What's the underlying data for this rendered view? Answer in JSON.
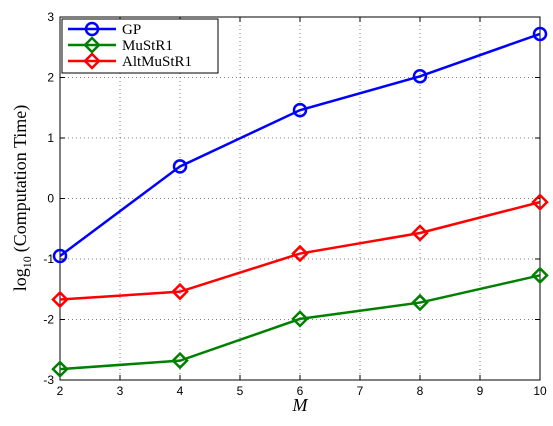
{
  "chart_data": {
    "type": "line",
    "xlabel": "M",
    "ylabel": {
      "base": "log",
      "sub": "10",
      "text": "(Computation Time)"
    },
    "x": [
      2,
      4,
      6,
      8,
      10
    ],
    "series": [
      {
        "name": "GP",
        "color": "#0000ff",
        "marker": "circle",
        "values": [
          -0.95,
          0.53,
          1.46,
          2.02,
          2.72
        ]
      },
      {
        "name": "MuStR1",
        "color": "#008000",
        "marker": "diamond",
        "values": [
          -2.82,
          -2.68,
          -1.99,
          -1.72,
          -1.27
        ]
      },
      {
        "name": "AltMuStR1",
        "color": "#ff0000",
        "marker": "diamond",
        "values": [
          -1.67,
          -1.54,
          -0.91,
          -0.57,
          -0.06
        ]
      }
    ],
    "xlim": [
      2,
      10
    ],
    "xticks": [
      2,
      3,
      4,
      5,
      6,
      7,
      8,
      9,
      10
    ],
    "ylim": [
      -3,
      3
    ],
    "yticks": [
      -3,
      -2,
      -1,
      0,
      1,
      2,
      3
    ],
    "grid": true,
    "legend": "upper-left"
  }
}
